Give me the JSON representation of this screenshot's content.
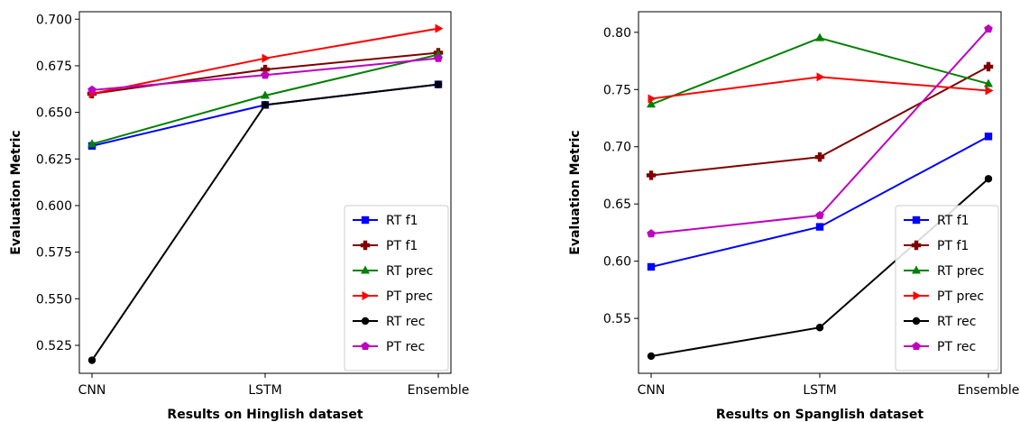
{
  "chart_data": [
    {
      "type": "line",
      "xlabel": "Results on Hinglish dataset",
      "ylabel": "Evaluation Metric",
      "categories": [
        "CNN",
        "LSTM",
        "Ensemble"
      ],
      "ylim": [
        0.51,
        0.704
      ],
      "yticks": [
        0.525,
        0.55,
        0.575,
        0.6,
        0.625,
        0.65,
        0.675,
        0.7
      ],
      "ytick_labels": [
        "0.525",
        "0.550",
        "0.575",
        "0.600",
        "0.625",
        "0.650",
        "0.675",
        "0.700"
      ],
      "grid": false,
      "legend": "bottom-right",
      "series": [
        {
          "name": "RT f1",
          "color": "#0000ff",
          "marker": "square",
          "values": [
            0.632,
            0.654,
            0.665
          ]
        },
        {
          "name": "PT f1",
          "color": "#800000",
          "marker": "plus",
          "values": [
            0.66,
            0.673,
            0.682
          ]
        },
        {
          "name": "RT prec",
          "color": "#008000",
          "marker": "triangle-up",
          "values": [
            0.633,
            0.659,
            0.681
          ]
        },
        {
          "name": "PT prec",
          "color": "#ff0000",
          "marker": "triangle-right",
          "values": [
            0.66,
            0.679,
            0.695
          ]
        },
        {
          "name": "RT rec",
          "color": "#000000",
          "marker": "circle",
          "values": [
            0.517,
            0.654,
            0.665
          ]
        },
        {
          "name": "PT rec",
          "color": "#bf00bf",
          "marker": "pentagon",
          "values": [
            0.662,
            0.67,
            0.679
          ]
        }
      ]
    },
    {
      "type": "line",
      "xlabel": "Results on Spanglish dataset",
      "ylabel": "Evaluation Metric",
      "categories": [
        "CNN",
        "LSTM",
        "Ensemble"
      ],
      "ylim": [
        0.502,
        0.818
      ],
      "yticks": [
        0.55,
        0.6,
        0.65,
        0.7,
        0.75,
        0.8
      ],
      "ytick_labels": [
        "0.55",
        "0.60",
        "0.65",
        "0.70",
        "0.75",
        "0.80"
      ],
      "grid": false,
      "legend": "bottom-right",
      "series": [
        {
          "name": "RT f1",
          "color": "#0000ff",
          "marker": "square",
          "values": [
            0.595,
            0.63,
            0.709
          ]
        },
        {
          "name": "PT f1",
          "color": "#800000",
          "marker": "plus",
          "values": [
            0.675,
            0.691,
            0.77
          ]
        },
        {
          "name": "RT prec",
          "color": "#008000",
          "marker": "triangle-up",
          "values": [
            0.737,
            0.795,
            0.755
          ]
        },
        {
          "name": "PT prec",
          "color": "#ff0000",
          "marker": "triangle-right",
          "values": [
            0.742,
            0.761,
            0.749
          ]
        },
        {
          "name": "RT rec",
          "color": "#000000",
          "marker": "circle",
          "values": [
            0.517,
            0.542,
            0.672
          ]
        },
        {
          "name": "PT rec",
          "color": "#bf00bf",
          "marker": "pentagon",
          "values": [
            0.624,
            0.64,
            0.803
          ]
        }
      ]
    }
  ]
}
